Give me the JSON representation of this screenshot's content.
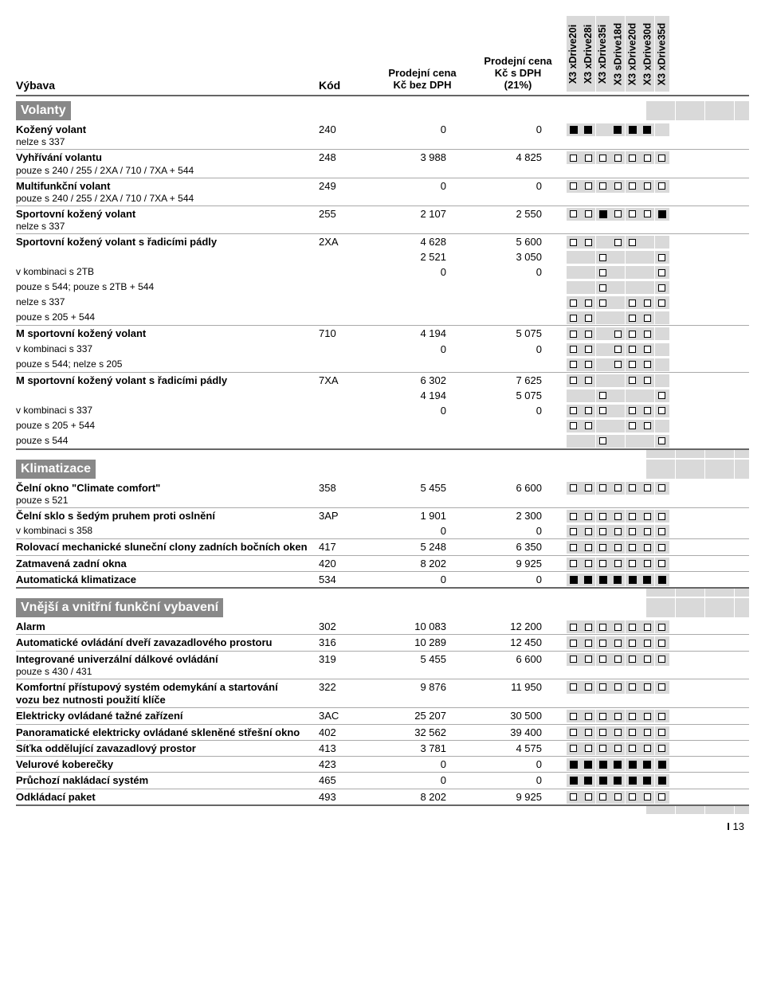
{
  "header": {
    "col_name": "Výbava",
    "col_kod": "Kód",
    "col_p1_l1": "Prodejní cena",
    "col_p1_l2": "Kč bez DPH",
    "col_p2_l1": "Prodejní cena",
    "col_p2_l2": "Kč s DPH",
    "col_p2_l3": "(21%)",
    "variants": [
      "X3 xDrive20i",
      "X3 xDrive28i",
      "X3 xDrive35i",
      "X3 sDrive18d",
      "X3 xDrive20d",
      "X3 xDrive30d",
      "X3 xDrive35d"
    ]
  },
  "sections": [
    {
      "title": "Volanty",
      "rows": [
        {
          "main": "Kožený volant",
          "sub": "nelze s 337",
          "kod": "240",
          "p1": "0",
          "p2": "0",
          "marks": [
            "F",
            "F",
            "",
            "F",
            "F",
            "F",
            ""
          ]
        },
        {
          "main": "Vyhřívání volantu",
          "sub": "pouze s 240 / 255 / 2XA / 710 / 7XA + 544",
          "kod": "248",
          "p1": "3 988",
          "p2": "4 825",
          "marks": [
            "E",
            "E",
            "E",
            "E",
            "E",
            "E",
            "E"
          ]
        },
        {
          "main": "Multifunkční volant",
          "sub": "pouze s 240 / 255 / 2XA / 710 / 7XA + 544",
          "kod": "249",
          "p1": "0",
          "p2": "0",
          "marks": [
            "E",
            "E",
            "E",
            "E",
            "E",
            "E",
            "E"
          ]
        },
        {
          "main": "Sportovní kožený volant",
          "sub": "nelze s 337",
          "kod": "255",
          "p1": "2 107",
          "p2": "2 550",
          "marks": [
            "E",
            "E",
            "F",
            "E",
            "E",
            "E",
            "F"
          ]
        },
        {
          "main": "Sportovní kožený volant s řadicími pádly",
          "sub": "",
          "kod": "2XA",
          "p1": "4 628",
          "p2": "5 600",
          "marks": [
            "E",
            "E",
            "",
            "E",
            "E",
            "",
            ""
          ],
          "nb": true
        },
        {
          "main": "",
          "sub": "",
          "kod": "",
          "p1": "2 521",
          "p2": "3 050",
          "marks": [
            "",
            "",
            "E",
            "",
            "",
            "",
            "E"
          ],
          "nb": true
        },
        {
          "main": "",
          "sub": "v kombinaci s 2TB",
          "kod": "",
          "p1": "0",
          "p2": "0",
          "marks": [
            "",
            "",
            "E",
            "",
            "",
            "",
            "E"
          ],
          "nb": true
        },
        {
          "main": "",
          "sub": "pouze s 544; pouze s 2TB + 544",
          "kod": "",
          "p1": "",
          "p2": "",
          "marks": [
            "",
            "",
            "E",
            "",
            "",
            "",
            "E"
          ],
          "nb": true
        },
        {
          "main": "",
          "sub": "nelze s 337",
          "kod": "",
          "p1": "",
          "p2": "",
          "marks": [
            "E",
            "E",
            "E",
            "",
            "E",
            "E",
            "E"
          ],
          "nb": true
        },
        {
          "main": "",
          "sub": "pouze s 205 + 544",
          "kod": "",
          "p1": "",
          "p2": "",
          "marks": [
            "E",
            "E",
            "",
            "",
            "E",
            "E",
            ""
          ]
        },
        {
          "main": "M sportovní kožený volant",
          "sub": "",
          "kod": "710",
          "p1": "4 194",
          "p2": "5 075",
          "marks": [
            "E",
            "E",
            "",
            "E",
            "E",
            "E",
            ""
          ],
          "nb": true
        },
        {
          "main": "",
          "sub": "v kombinaci s 337",
          "kod": "",
          "p1": "0",
          "p2": "0",
          "marks": [
            "E",
            "E",
            "",
            "E",
            "E",
            "E",
            ""
          ],
          "nb": true
        },
        {
          "main": "",
          "sub": "pouze s 544; nelze s 205",
          "kod": "",
          "p1": "",
          "p2": "",
          "marks": [
            "E",
            "E",
            "",
            "E",
            "E",
            "E",
            ""
          ]
        },
        {
          "main": "M sportovní kožený volant s řadicími pádly",
          "sub": "",
          "kod": "7XA",
          "p1": "6 302",
          "p2": "7 625",
          "marks": [
            "E",
            "E",
            "",
            "",
            "E",
            "E",
            ""
          ],
          "nb": true
        },
        {
          "main": "",
          "sub": "",
          "kod": "",
          "p1": "4 194",
          "p2": "5 075",
          "marks": [
            "",
            "",
            "E",
            "",
            "",
            "",
            "E"
          ],
          "nb": true
        },
        {
          "main": "",
          "sub": "v kombinaci s 337",
          "kod": "",
          "p1": "0",
          "p2": "0",
          "marks": [
            "E",
            "E",
            "E",
            "",
            "E",
            "E",
            "E"
          ],
          "nb": true
        },
        {
          "main": "",
          "sub": "pouze s 205 + 544",
          "kod": "",
          "p1": "",
          "p2": "",
          "marks": [
            "E",
            "E",
            "",
            "",
            "E",
            "E",
            ""
          ],
          "nb": true
        },
        {
          "main": "",
          "sub": "pouze s 544",
          "kod": "",
          "p1": "",
          "p2": "",
          "marks": [
            "",
            "",
            "E",
            "",
            "",
            "",
            "E"
          ],
          "thick": true
        }
      ]
    },
    {
      "title": "Klimatizace",
      "rows": [
        {
          "main": "Čelní okno \"Climate comfort\"",
          "sub": "pouze s 521",
          "kod": "358",
          "p1": "5 455",
          "p2": "6 600",
          "marks": [
            "E",
            "E",
            "E",
            "E",
            "E",
            "E",
            "E"
          ]
        },
        {
          "main": "Čelní sklo s šedým pruhem proti oslnění",
          "sub": "",
          "kod": "3AP",
          "p1": "1 901",
          "p2": "2 300",
          "marks": [
            "E",
            "E",
            "E",
            "E",
            "E",
            "E",
            "E"
          ],
          "nb": true
        },
        {
          "main": "",
          "sub": "v kombinaci s 358",
          "kod": "",
          "p1": "0",
          "p2": "0",
          "marks": [
            "E",
            "E",
            "E",
            "E",
            "E",
            "E",
            "E"
          ]
        },
        {
          "main": "Rolovací mechanické sluneční clony zadních bočních oken",
          "sub": "",
          "kod": "417",
          "p1": "5 248",
          "p2": "6 350",
          "marks": [
            "E",
            "E",
            "E",
            "E",
            "E",
            "E",
            "E"
          ]
        },
        {
          "main": "Zatmavená zadní okna",
          "sub": "",
          "kod": "420",
          "p1": "8 202",
          "p2": "9 925",
          "marks": [
            "E",
            "E",
            "E",
            "E",
            "E",
            "E",
            "E"
          ]
        },
        {
          "main": "Automatická klimatizace",
          "sub": "",
          "kod": "534",
          "p1": "0",
          "p2": "0",
          "marks": [
            "F",
            "F",
            "F",
            "F",
            "F",
            "F",
            "F"
          ],
          "thick": true
        }
      ]
    },
    {
      "title": "Vnější a vnitřní funkční vybavení",
      "rows": [
        {
          "main": "Alarm",
          "sub": "",
          "kod": "302",
          "p1": "10 083",
          "p2": "12 200",
          "marks": [
            "E",
            "E",
            "E",
            "E",
            "E",
            "E",
            "E"
          ]
        },
        {
          "main": "Automatické ovládání dveří zavazadlového prostoru",
          "sub": "",
          "kod": "316",
          "p1": "10 289",
          "p2": "12 450",
          "marks": [
            "E",
            "E",
            "E",
            "E",
            "E",
            "E",
            "E"
          ]
        },
        {
          "main": "Integrované univerzální dálkové ovládání",
          "sub": "pouze s 430 / 431",
          "kod": "319",
          "p1": "5 455",
          "p2": "6 600",
          "marks": [
            "E",
            "E",
            "E",
            "E",
            "E",
            "E",
            "E"
          ]
        },
        {
          "main": "Komfortní přístupový systém odemykání a startování<br>vozu bez nutnosti použití klíče",
          "sub": "",
          "kod": "322",
          "p1": "9 876",
          "p2": "11 950",
          "marks": [
            "E",
            "E",
            "E",
            "E",
            "E",
            "E",
            "E"
          ]
        },
        {
          "main": "Elektricky ovládané tažné zařízení",
          "sub": "",
          "kod": "3AC",
          "p1": "25 207",
          "p2": "30 500",
          "marks": [
            "E",
            "E",
            "E",
            "E",
            "E",
            "E",
            "E"
          ]
        },
        {
          "main": "Panoramatické elektricky ovládané skleněné střešní okno",
          "sub": "",
          "kod": "402",
          "p1": "32 562",
          "p2": "39 400",
          "marks": [
            "E",
            "E",
            "E",
            "E",
            "E",
            "E",
            "E"
          ]
        },
        {
          "main": "Síťka oddělující zavazadlový prostor",
          "sub": "",
          "kod": "413",
          "p1": "3 781",
          "p2": "4 575",
          "marks": [
            "E",
            "E",
            "E",
            "E",
            "E",
            "E",
            "E"
          ]
        },
        {
          "main": "Velurové koberečky",
          "sub": "",
          "kod": "423",
          "p1": "0",
          "p2": "0",
          "marks": [
            "F",
            "F",
            "F",
            "F",
            "F",
            "F",
            "F"
          ]
        },
        {
          "main": "Průchozí nakládací systém",
          "sub": "",
          "kod": "465",
          "p1": "0",
          "p2": "0",
          "marks": [
            "F",
            "F",
            "F",
            "F",
            "F",
            "F",
            "F"
          ]
        },
        {
          "main": "Odkládací paket",
          "sub": "",
          "kod": "493",
          "p1": "8 202",
          "p2": "9 925",
          "marks": [
            "E",
            "E",
            "E",
            "E",
            "E",
            "E",
            "E"
          ],
          "thick": true
        }
      ]
    }
  ],
  "page_label": "I 13"
}
